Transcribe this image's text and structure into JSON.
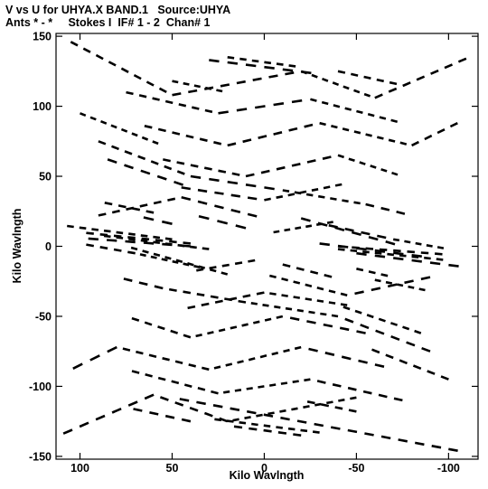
{
  "chart_data": {
    "type": "scatter",
    "title": "V vs U for UHYA.X BAND.1   Source:UHYA",
    "subtitle": "Ants * - *     Stokes I  IF# 1 - 2  Chan# 1",
    "xlabel": "Kilo Wavlngth",
    "ylabel": "Kilo Wavlngth",
    "xlim": [
      113,
      -116
    ],
    "ylim": [
      -152,
      152
    ],
    "xticks": [
      100,
      50,
      0,
      -50,
      -100
    ],
    "yticks": [
      150,
      100,
      50,
      0,
      -50,
      -100,
      -150
    ],
    "grid": false,
    "legend": "none",
    "marker_color": "#000000",
    "tracks": [
      {
        "x": [
          50,
          110
        ],
        "y": [
          5,
          15
        ]
      },
      {
        "x": [
          40,
          100
        ],
        "y": [
          2,
          10
        ]
      },
      {
        "x": [
          40,
          100
        ],
        "y": [
          0,
          6
        ]
      },
      {
        "x": [
          30,
          90
        ],
        "y": [
          -2,
          8
        ]
      },
      {
        "x": [
          60,
          90
        ],
        "y": [
          24,
          32
        ]
      },
      {
        "x": [
          50,
          70
        ],
        "y": [
          16,
          22
        ]
      },
      {
        "x": [
          35,
          70
        ],
        "y": [
          -15,
          -5
        ]
      },
      {
        "x": [
          70,
          100
        ],
        "y": [
          -5,
          2
        ]
      },
      {
        "x": [
          10,
          40
        ],
        "y": [
          13,
          23
        ]
      },
      {
        "x": [
          20,
          75
        ],
        "y": [
          -20,
          0
        ]
      },
      {
        "x": [
          5,
          40
        ],
        "y": [
          -10,
          -18
        ]
      },
      {
        "x": [
          -50,
          -110
        ],
        "y": [
          -5,
          -15
        ]
      },
      {
        "x": [
          -40,
          -100
        ],
        "y": [
          -2,
          -10
        ]
      },
      {
        "x": [
          -40,
          -100
        ],
        "y": [
          0,
          -6
        ]
      },
      {
        "x": [
          -30,
          -90
        ],
        "y": [
          2,
          -8
        ]
      },
      {
        "x": [
          -60,
          -90
        ],
        "y": [
          -24,
          -32
        ]
      },
      {
        "x": [
          -50,
          -70
        ],
        "y": [
          -16,
          -22
        ]
      },
      {
        "x": [
          -35,
          -70
        ],
        "y": [
          15,
          5
        ]
      },
      {
        "x": [
          -70,
          -100
        ],
        "y": [
          5,
          -2
        ]
      },
      {
        "x": [
          -10,
          -40
        ],
        "y": [
          -13,
          -23
        ]
      },
      {
        "x": [
          -20,
          -75
        ],
        "y": [
          20,
          0
        ]
      },
      {
        "x": [
          -5,
          -40
        ],
        "y": [
          10,
          18
        ]
      },
      {
        "x": [
          105,
          50
        ],
        "y": [
          146,
          108
        ]
      },
      {
        "x": [
          50,
          -20
        ],
        "y": [
          108,
          125
        ]
      },
      {
        "x": [
          -20,
          -60
        ],
        "y": [
          125,
          106
        ]
      },
      {
        "x": [
          -60,
          -113
        ],
        "y": [
          106,
          136
        ]
      },
      {
        "x": [
          30,
          -30
        ],
        "y": [
          133,
          123
        ]
      },
      {
        "x": [
          20,
          -20
        ],
        "y": [
          135,
          128
        ]
      },
      {
        "x": [
          75,
          25
        ],
        "y": [
          110,
          95
        ]
      },
      {
        "x": [
          25,
          -25
        ],
        "y": [
          95,
          105
        ]
      },
      {
        "x": [
          -25,
          -75
        ],
        "y": [
          105,
          88
        ]
      },
      {
        "x": [
          65,
          20
        ],
        "y": [
          86,
          72
        ]
      },
      {
        "x": [
          20,
          -30
        ],
        "y": [
          72,
          88
        ]
      },
      {
        "x": [
          -30,
          -80
        ],
        "y": [
          88,
          72
        ]
      },
      {
        "x": [
          55,
          10
        ],
        "y": [
          62,
          50
        ]
      },
      {
        "x": [
          10,
          -40
        ],
        "y": [
          50,
          65
        ]
      },
      {
        "x": [
          -40,
          -75
        ],
        "y": [
          65,
          50
        ]
      },
      {
        "x": [
          90,
          40
        ],
        "y": [
          75,
          50
        ]
      },
      {
        "x": [
          40,
          -10
        ],
        "y": [
          50,
          40
        ]
      },
      {
        "x": [
          -10,
          -55
        ],
        "y": [
          40,
          30
        ]
      },
      {
        "x": [
          -55,
          -80
        ],
        "y": [
          30,
          22
        ]
      },
      {
        "x": [
          85,
          40
        ],
        "y": [
          62,
          42
        ]
      },
      {
        "x": [
          100,
          55
        ],
        "y": [
          95,
          72
        ]
      },
      {
        "x": [
          -80,
          -108
        ],
        "y": [
          72,
          90
        ]
      },
      {
        "x": [
          45,
          0
        ],
        "y": [
          42,
          33
        ]
      },
      {
        "x": [
          0,
          -45
        ],
        "y": [
          33,
          45
        ]
      },
      {
        "x": [
          90,
          45
        ],
        "y": [
          22,
          35
        ]
      },
      {
        "x": [
          45,
          0
        ],
        "y": [
          35,
          20
        ]
      },
      {
        "x": [
          50,
          20
        ],
        "y": [
          118,
          110
        ]
      },
      {
        "x": [
          -40,
          -75
        ],
        "y": [
          125,
          115
        ]
      },
      {
        "x": [
          -105,
          50
        ],
        "y": [
          -146,
          -108
        ]
      },
      {
        "x": [
          -50,
          20
        ],
        "y": [
          -108,
          -125
        ]
      },
      {
        "x": [
          20,
          60
        ],
        "y": [
          -125,
          -106
        ]
      },
      {
        "x": [
          60,
          113
        ],
        "y": [
          -106,
          -136
        ]
      },
      {
        "x": [
          -30,
          30
        ],
        "y": [
          -133,
          -123
        ]
      },
      {
        "x": [
          -20,
          20
        ],
        "y": [
          -135,
          -128
        ]
      },
      {
        "x": [
          -75,
          -25
        ],
        "y": [
          -110,
          -95
        ]
      },
      {
        "x": [
          -25,
          25
        ],
        "y": [
          -95,
          -105
        ]
      },
      {
        "x": [
          25,
          75
        ],
        "y": [
          -105,
          -88
        ]
      },
      {
        "x": [
          -65,
          -20
        ],
        "y": [
          -86,
          -72
        ]
      },
      {
        "x": [
          -20,
          30
        ],
        "y": [
          -72,
          -88
        ]
      },
      {
        "x": [
          30,
          80
        ],
        "y": [
          -88,
          -72
        ]
      },
      {
        "x": [
          -55,
          -10
        ],
        "y": [
          -62,
          -50
        ]
      },
      {
        "x": [
          -10,
          40
        ],
        "y": [
          -50,
          -65
        ]
      },
      {
        "x": [
          40,
          75
        ],
        "y": [
          -65,
          -50
        ]
      },
      {
        "x": [
          -90,
          -40
        ],
        "y": [
          -75,
          -50
        ]
      },
      {
        "x": [
          -40,
          10
        ],
        "y": [
          -50,
          -40
        ]
      },
      {
        "x": [
          10,
          55
        ],
        "y": [
          -40,
          -30
        ]
      },
      {
        "x": [
          55,
          80
        ],
        "y": [
          -30,
          -22
        ]
      },
      {
        "x": [
          -85,
          -40
        ],
        "y": [
          -62,
          -42
        ]
      },
      {
        "x": [
          -100,
          -55
        ],
        "y": [
          -95,
          -72
        ]
      },
      {
        "x": [
          80,
          108
        ],
        "y": [
          -72,
          -90
        ]
      },
      {
        "x": [
          -45,
          0
        ],
        "y": [
          -42,
          -33
        ]
      },
      {
        "x": [
          0,
          45
        ],
        "y": [
          -33,
          -45
        ]
      },
      {
        "x": [
          -90,
          -45
        ],
        "y": [
          -22,
          -35
        ]
      },
      {
        "x": [
          -45,
          0
        ],
        "y": [
          -35,
          -20
        ]
      },
      {
        "x": [
          -50,
          -20
        ],
        "y": [
          -118,
          -110
        ]
      },
      {
        "x": [
          40,
          75
        ],
        "y": [
          -125,
          -115
        ]
      }
    ]
  }
}
